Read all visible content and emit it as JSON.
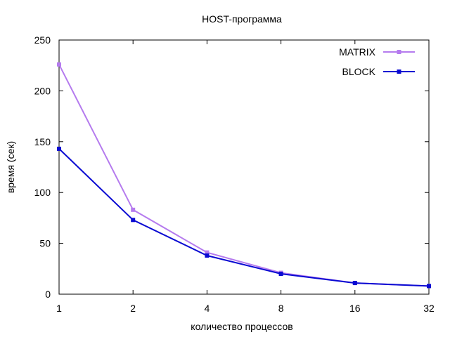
{
  "chart_data": {
    "type": "line",
    "title": "HOST-программа",
    "xlabel": "количество процессов",
    "ylabel": "время (сек)",
    "x_scale": "log2",
    "categories": [
      "1",
      "2",
      "4",
      "8",
      "16",
      "32"
    ],
    "x": [
      1,
      2,
      4,
      8,
      16,
      32
    ],
    "ylim": [
      0,
      250
    ],
    "yticks": [
      "0",
      "50",
      "100",
      "150",
      "200",
      "250"
    ],
    "grid": false,
    "legend_position": "top-right",
    "series": [
      {
        "name": "MATRIX",
        "color": "#b57bee",
        "marker": "square",
        "values": [
          226,
          83,
          41,
          21,
          11,
          8
        ]
      },
      {
        "name": "BLOCK",
        "color": "#0a0ad2",
        "marker": "square",
        "values": [
          143,
          73,
          38,
          20,
          11,
          8
        ]
      }
    ]
  }
}
